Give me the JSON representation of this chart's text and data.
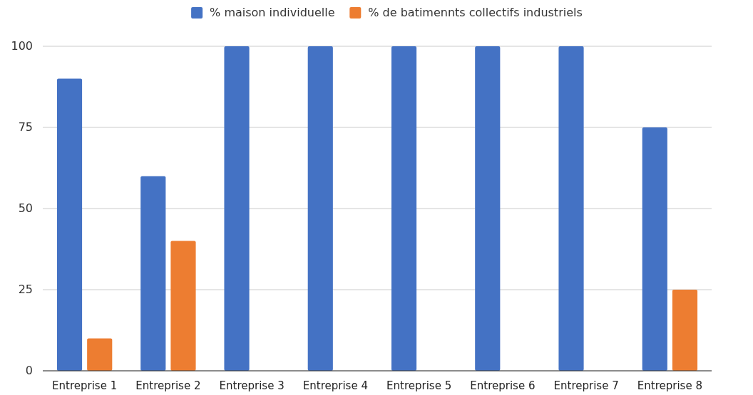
{
  "chart_data": {
    "type": "bar",
    "categories": [
      "Entreprise 1",
      "Entreprise 2",
      "Entreprise 3",
      "Entreprise 4",
      "Entreprise 5",
      "Entreprise 6",
      "Entreprise 7",
      "Entreprise 8"
    ],
    "series": [
      {
        "name": "% maison individuelle",
        "color": "#4472c4",
        "values": [
          90,
          60,
          100,
          100,
          100,
          100,
          100,
          75
        ]
      },
      {
        "name": "% de batimennts collectifs industriels",
        "color": "#ed7d31",
        "values": [
          10,
          40,
          null,
          null,
          null,
          null,
          null,
          25
        ]
      }
    ],
    "ylim": [
      0,
      100
    ],
    "yticks": [
      0,
      25,
      50,
      75,
      100
    ],
    "grid": "y",
    "legend": "top"
  }
}
